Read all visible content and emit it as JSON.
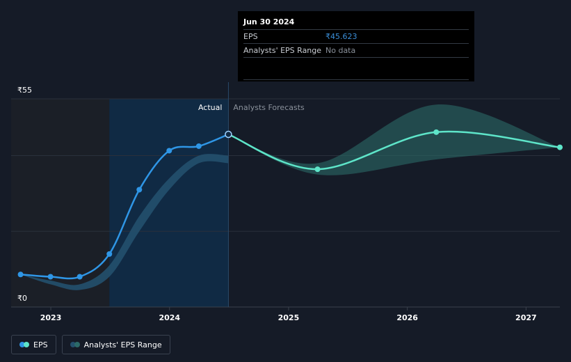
{
  "colors": {
    "background": "#151b27",
    "actual_line": "#2f96e6",
    "forecast_line": "#5ee5c9",
    "range_band": "#2b6a68",
    "gridline": "#2a303b",
    "past_shade": "#1b1f27",
    "highlight_shade": "#102a44"
  },
  "tooltip": {
    "date": "Jun 30 2024",
    "rows": [
      {
        "label": "EPS",
        "value": "₹45.623"
      },
      {
        "label": "Analysts' EPS Range",
        "value": "No data"
      }
    ]
  },
  "regions": {
    "actual_label": "Actual",
    "forecast_label": "Analysts Forecasts"
  },
  "legend": {
    "eps_label": "EPS",
    "range_label": "Analysts' EPS Range",
    "eps_icon": "eps-series-icon",
    "range_icon": "range-series-icon"
  },
  "chart_data": {
    "type": "line",
    "y_tick_labels": [
      "₹55",
      "₹0"
    ],
    "ylim": [
      0,
      55
    ],
    "y_gridlines": [
      0,
      20,
      40,
      55
    ],
    "x_tick_labels": [
      "2023",
      "2024",
      "2025",
      "2026",
      "2027"
    ],
    "x_ticks": [
      "2023-01-01",
      "2024-01-01",
      "2025-01-01",
      "2026-01-01",
      "2027-01-01"
    ],
    "xlim": [
      "2022-09-01",
      "2027-04-15"
    ],
    "shaded_past_start": "2022-09-01",
    "highlight_start": "2023-06-30",
    "divider_date": "2024-06-30",
    "series": [
      {
        "name": "EPS",
        "points": [
          {
            "x": "2022-09-30",
            "y": 8.6
          },
          {
            "x": "2022-12-31",
            "y": 8.0
          },
          {
            "x": "2023-03-31",
            "y": 8.0
          },
          {
            "x": "2023-06-30",
            "y": 14.0
          },
          {
            "x": "2023-09-30",
            "y": 31.0
          },
          {
            "x": "2023-12-31",
            "y": 41.3
          },
          {
            "x": "2024-03-31",
            "y": 42.5
          },
          {
            "x": "2024-06-30",
            "y": 45.623
          }
        ]
      },
      {
        "name": "Analysts Forecasts",
        "points": [
          {
            "x": "2024-06-30",
            "y": 45.623
          },
          {
            "x": "2025-03-31",
            "y": 36.4
          },
          {
            "x": "2026-03-31",
            "y": 46.2
          },
          {
            "x": "2027-04-15",
            "y": 42.2
          }
        ]
      }
    ],
    "past_range": {
      "upper": [
        {
          "x": "2022-09-30",
          "y": 8.6
        },
        {
          "x": "2022-12-31",
          "y": 7.0
        },
        {
          "x": "2023-03-31",
          "y": 6.0
        },
        {
          "x": "2023-06-30",
          "y": 11.0
        },
        {
          "x": "2023-09-30",
          "y": 24.0
        },
        {
          "x": "2023-12-31",
          "y": 34.0
        },
        {
          "x": "2024-03-31",
          "y": 40.0
        },
        {
          "x": "2024-06-30",
          "y": 40.0
        }
      ],
      "lower": [
        {
          "x": "2024-06-30",
          "y": 38.0
        },
        {
          "x": "2024-03-31",
          "y": 38.0
        },
        {
          "x": "2023-12-31",
          "y": 31.0
        },
        {
          "x": "2023-09-30",
          "y": 20.0
        },
        {
          "x": "2023-06-30",
          "y": 8.0
        },
        {
          "x": "2023-03-31",
          "y": 4.5
        },
        {
          "x": "2022-12-31",
          "y": 6.0
        },
        {
          "x": "2022-09-30",
          "y": 8.6
        }
      ]
    },
    "forecast_range": {
      "upper": [
        {
          "x": "2024-06-30",
          "y": 45.623
        },
        {
          "x": "2025-03-31",
          "y": 38.0
        },
        {
          "x": "2026-03-31",
          "y": 53.5
        },
        {
          "x": "2027-04-15",
          "y": 42.2
        }
      ],
      "lower": [
        {
          "x": "2027-04-15",
          "y": 42.2
        },
        {
          "x": "2026-03-31",
          "y": 39.0
        },
        {
          "x": "2025-03-31",
          "y": 35.0
        },
        {
          "x": "2024-06-30",
          "y": 45.623
        }
      ]
    }
  }
}
